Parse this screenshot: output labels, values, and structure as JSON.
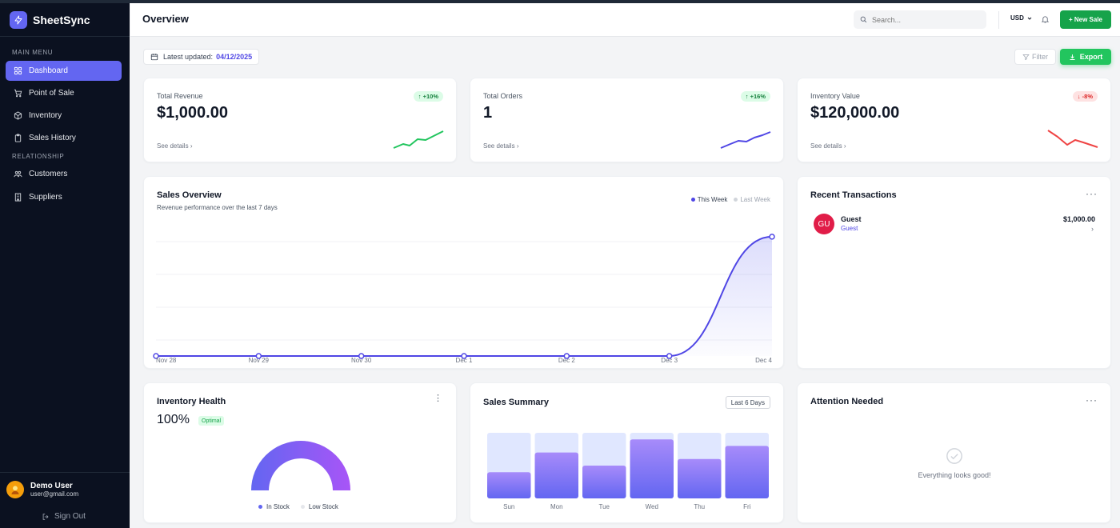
{
  "app": {
    "name": "SheetSync"
  },
  "sidebar": {
    "main_menu_label": "MAIN MENU",
    "main_items": [
      {
        "label": "Dashboard",
        "icon": "grid-icon",
        "active": true
      },
      {
        "label": "Point of Sale",
        "icon": "cart-icon"
      },
      {
        "label": "Inventory",
        "icon": "box-icon"
      },
      {
        "label": "Sales History",
        "icon": "clipboard-icon"
      }
    ],
    "relationship_label": "RELATIONSHIP",
    "relationship_items": [
      {
        "label": "Customers",
        "icon": "users-icon"
      },
      {
        "label": "Suppliers",
        "icon": "building-icon"
      }
    ],
    "user": {
      "name": "Demo User",
      "email": "user@gmail.com"
    },
    "sign_out": "Sign Out"
  },
  "header": {
    "title": "Overview",
    "search_placeholder": "Search...",
    "currency": "USD",
    "new_sale": "+ New Sale"
  },
  "toolbar": {
    "updated_label": "Latest updated:",
    "updated_date": "04/12/2025",
    "filter": "Filter",
    "export": "Export"
  },
  "stats": [
    {
      "label": "Total Revenue",
      "value": "$1,000.00",
      "change": "↑ +10%",
      "trend": "up",
      "link": "See details",
      "color": "#22c55e"
    },
    {
      "label": "Total Orders",
      "value": "1",
      "change": "↑ +16%",
      "trend": "up",
      "link": "See details",
      "color": "#4f46e5"
    },
    {
      "label": "Inventory Value",
      "value": "$120,000.00",
      "change": "↓ -8%",
      "trend": "down",
      "link": "See details",
      "color": "#ef4444"
    }
  ],
  "sales_overview": {
    "title": "Sales Overview",
    "subtitle": "Revenue performance over the last 7 days",
    "legend_this_week": "This Week",
    "legend_last_week": "Last Week",
    "chart_data": {
      "type": "area",
      "categories": [
        "Nov 28",
        "Nov 29",
        "Nov 30",
        "Dec 1",
        "Dec 2",
        "Dec 3",
        "Dec 4"
      ],
      "series": [
        {
          "name": "This Week",
          "values": [
            0,
            0,
            0,
            0,
            0,
            0,
            1000
          ],
          "color": "#4f46e5"
        }
      ],
      "ylim": [
        0,
        1100
      ],
      "grid": true,
      "legend": "top-right"
    }
  },
  "recent_transactions": {
    "title": "Recent Transactions",
    "items": [
      {
        "initials": "GU",
        "name": "Guest",
        "sub": "Guest",
        "amount": "$1,000.00"
      }
    ]
  },
  "inventory_health": {
    "title": "Inventory Health",
    "percent": "100%",
    "status": "Optimal",
    "in_stock_fraction": 1.0,
    "legend_in_stock": "In Stock",
    "legend_low_stock": "Low Stock"
  },
  "sales_summary": {
    "title": "Sales Summary",
    "range": "Last 6 Days",
    "chart_data": {
      "type": "bar",
      "categories": [
        "Sun",
        "Mon",
        "Tue",
        "Wed",
        "Thu",
        "Fri"
      ],
      "values": [
        0.4,
        0.7,
        0.5,
        0.9,
        0.6,
        0.8
      ],
      "ylim": [
        0,
        1
      ]
    }
  },
  "attention": {
    "title": "Attention Needed",
    "message": "Everything looks good!"
  }
}
